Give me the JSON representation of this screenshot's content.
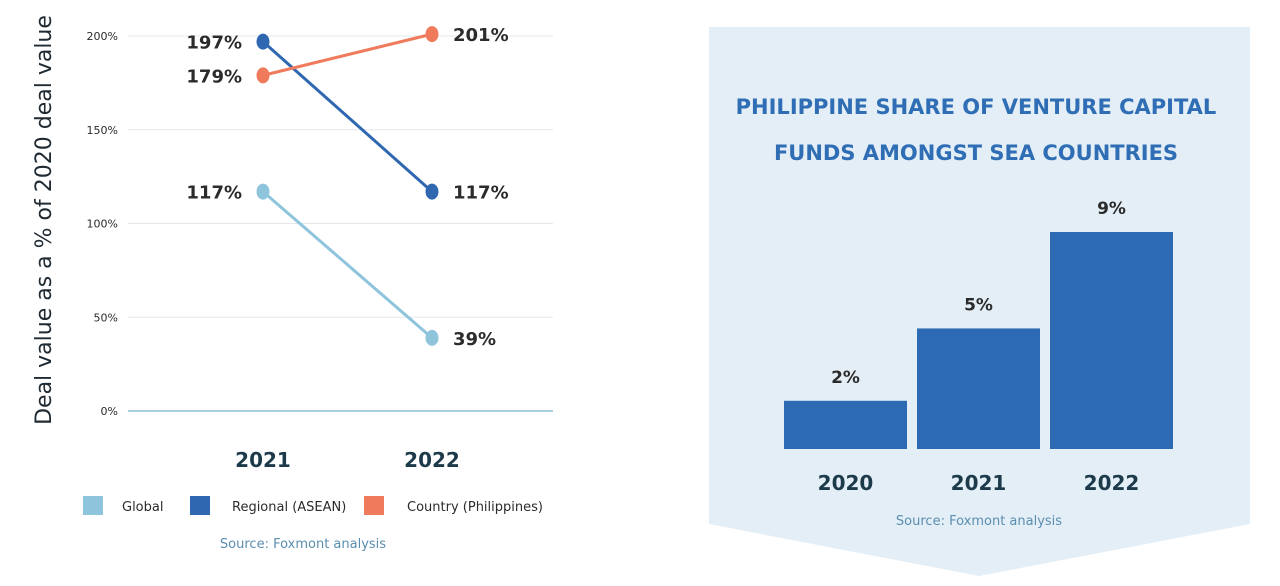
{
  "chart_data": [
    {
      "type": "line",
      "title": "",
      "ylabel": "Deal value as a % of 2020 deal value",
      "xlabel": "",
      "x": [
        "2021",
        "2022"
      ],
      "ylim": [
        0,
        200
      ],
      "yticks": [
        {
          "value": 0,
          "label": "0%"
        },
        {
          "value": 50,
          "label": "50%"
        },
        {
          "value": 100,
          "label": "100%"
        },
        {
          "value": 150,
          "label": "150%"
        },
        {
          "value": 200,
          "label": "200%"
        }
      ],
      "grid": true,
      "legend_position": "bottom",
      "series": [
        {
          "name": "Global",
          "color": "#8ec4dc",
          "values": [
            117,
            39
          ],
          "labels": [
            "117%",
            "39%"
          ]
        },
        {
          "name": "Regional (ASEAN)",
          "color": "#2f68b0",
          "values": [
            197,
            117
          ],
          "labels": [
            "197%",
            "117%"
          ]
        },
        {
          "name": "Country (Philippines)",
          "color": "#f07a5c",
          "values": [
            179,
            201
          ],
          "labels": [
            "179%",
            "201%"
          ]
        }
      ],
      "source": "Source: Foxmont analysis"
    },
    {
      "type": "bar",
      "title_lines": [
        "PHILIPPINE SHARE OF VENTURE CAPITAL",
        "FUNDS AMONGST SEA COUNTRIES"
      ],
      "categories": [
        "2020",
        "2021",
        "2022"
      ],
      "values": [
        2,
        5,
        9
      ],
      "labels": [
        "2%",
        "5%",
        "9%"
      ],
      "ylim": [
        0,
        9.5
      ],
      "bar_color": "#2c6bb3",
      "panel_color": "#e3eef6",
      "source": "Source: Foxmont analysis"
    }
  ]
}
